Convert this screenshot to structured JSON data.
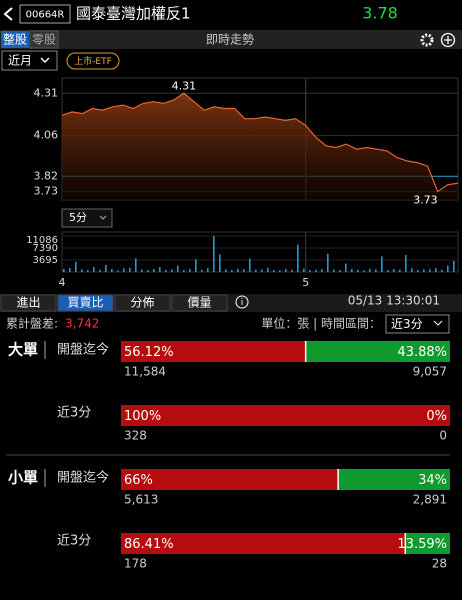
{
  "header": {
    "code": "00664R",
    "name": "國泰臺灣加權反1",
    "price": "3.78"
  },
  "tabs": {
    "board": [
      "整股",
      "零股"
    ],
    "view": "即時走勢"
  },
  "period": "近月",
  "market": "上市-ETF",
  "price_chart": {
    "type": "line",
    "color": "#e8652b",
    "values": [
      4.18,
      4.2,
      4.19,
      4.22,
      4.21,
      4.23,
      4.24,
      4.22,
      4.25,
      4.26,
      4.25,
      4.27,
      4.31,
      4.26,
      4.21,
      4.23,
      4.22,
      4.22,
      4.16,
      4.16,
      4.17,
      4.16,
      4.15,
      4.16,
      4.12,
      4.05,
      4.0,
      3.99,
      4.01,
      3.98,
      3.99,
      3.98,
      3.97,
      3.93,
      3.91,
      3.9,
      3.88,
      3.73,
      3.77,
      3.78
    ],
    "ylim": [
      3.68,
      4.4
    ],
    "yticks": [
      3.73,
      3.82,
      4.06,
      4.31
    ],
    "reference_line": 3.82,
    "xticks": [
      {
        "value": 0,
        "label": "4"
      },
      {
        "value": 24,
        "label": "5"
      }
    ]
  },
  "interval": "5分",
  "volume_chart": {
    "type": "bar",
    "color": "#1e9bd7",
    "values": [
      900,
      1200,
      3100,
      800,
      600,
      1500,
      700,
      2200,
      900,
      500,
      1100,
      1300,
      4200,
      800,
      600,
      900,
      1500,
      700,
      800,
      2000,
      600,
      900,
      3900,
      700,
      1200,
      11086,
      5400,
      800,
      600,
      1000,
      900,
      4100,
      700,
      800,
      1300,
      600,
      500,
      900,
      700,
      8400,
      1000,
      600,
      700,
      900,
      5600,
      800,
      600,
      2600,
      900,
      700,
      500,
      1000,
      800,
      4800,
      600,
      900,
      700,
      5200,
      1100,
      600,
      800,
      900,
      1200,
      700,
      2000,
      3400
    ],
    "ylim": [
      0,
      11086
    ],
    "yticks": [
      3695,
      7390,
      11086
    ]
  },
  "detail_tabs": [
    "進出",
    "買賣比",
    "分佈",
    "價量"
  ],
  "timestamp": "05/13 13:30:01",
  "diff_label": "累計盤差:",
  "diff_value": "3,742",
  "unit": "單位：張 | 時間區間：",
  "range": "近3分",
  "groups": [
    {
      "label": "大單",
      "rows": [
        {
          "label": "開盤迄今",
          "values": [
            56.12,
            43.88
          ],
          "value_labels": [
            "56.12%",
            "43.88%"
          ],
          "counts": [
            "11,584",
            "9,057"
          ]
        },
        {
          "label": "近3分",
          "values": [
            100,
            0
          ],
          "value_labels": [
            "100%",
            "0%"
          ],
          "counts": [
            "328",
            "0"
          ]
        }
      ]
    },
    {
      "label": "小單",
      "rows": [
        {
          "label": "開盤迄今",
          "values": [
            66,
            34
          ],
          "value_labels": [
            "66%",
            "34%"
          ],
          "counts": [
            "5,613",
            "2,891"
          ]
        },
        {
          "label": "近3分",
          "values": [
            86.41,
            13.59
          ],
          "value_labels": [
            "86.41%",
            "13.59%"
          ],
          "counts": [
            "178",
            "28"
          ]
        }
      ]
    }
  ]
}
